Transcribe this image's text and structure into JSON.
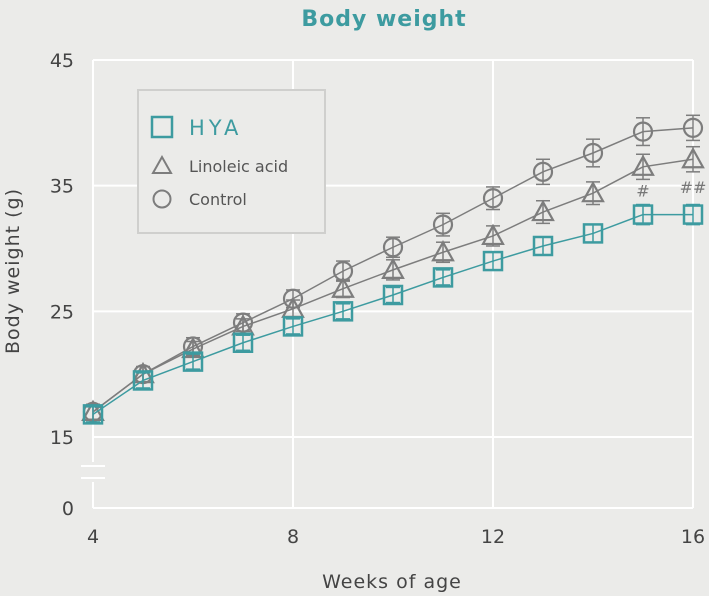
{
  "chart_data": {
    "type": "line",
    "title": "Body weight",
    "xlabel": "Weeks of age",
    "ylabel": "Body weight (g)",
    "xlim": [
      4,
      16
    ],
    "ylim": [
      15,
      45
    ],
    "x_ticks": [
      "4",
      "8",
      "12",
      "16"
    ],
    "y_ticks": [
      "45",
      "35",
      "25",
      "15",
      "0"
    ],
    "y_axis_break": true,
    "grid": true,
    "legend_position": "top-left",
    "x": [
      4,
      5,
      6,
      7,
      8,
      9,
      10,
      11,
      12,
      13,
      14,
      15,
      16
    ],
    "series": [
      {
        "name": "HYA",
        "marker": "square",
        "color": "#3d9ba0",
        "values": [
          16.8,
          19.5,
          21.0,
          22.5,
          23.8,
          25.0,
          26.3,
          27.7,
          29.0,
          30.2,
          31.2,
          32.7,
          32.7
        ],
        "error": [
          0.6,
          0.6,
          0.6,
          0.6,
          0.6,
          0.6,
          0.6,
          0.6,
          0.7,
          0.7,
          0.7,
          0.8,
          0.8
        ]
      },
      {
        "name": "Linoleic acid",
        "marker": "triangle",
        "color": "#7d7d7d",
        "values": [
          17.0,
          20.0,
          22.0,
          23.8,
          25.2,
          26.8,
          28.3,
          29.7,
          31.0,
          32.9,
          34.4,
          36.5,
          37.1
        ],
        "error": [
          0.6,
          0.6,
          0.6,
          0.6,
          0.7,
          0.7,
          0.8,
          0.8,
          0.8,
          0.9,
          0.9,
          1.0,
          1.0
        ]
      },
      {
        "name": "Control",
        "marker": "circle",
        "color": "#7d7d7d",
        "values": [
          17.0,
          20.0,
          22.2,
          24.1,
          26.0,
          28.2,
          30.1,
          31.9,
          34.0,
          36.1,
          37.6,
          39.3,
          39.6
        ],
        "error": [
          0.6,
          0.6,
          0.7,
          0.7,
          0.7,
          0.8,
          0.8,
          0.9,
          0.9,
          1.0,
          1.1,
          1.1,
          1.0
        ]
      }
    ],
    "annotations": [
      {
        "text": "#",
        "x": 15
      },
      {
        "text": "##",
        "x": 16
      }
    ]
  },
  "colors": {
    "accent": "#3d9ba0",
    "gray_series": "#7d7d7d",
    "background": "#ebebe9",
    "grid": "#ffffff"
  }
}
